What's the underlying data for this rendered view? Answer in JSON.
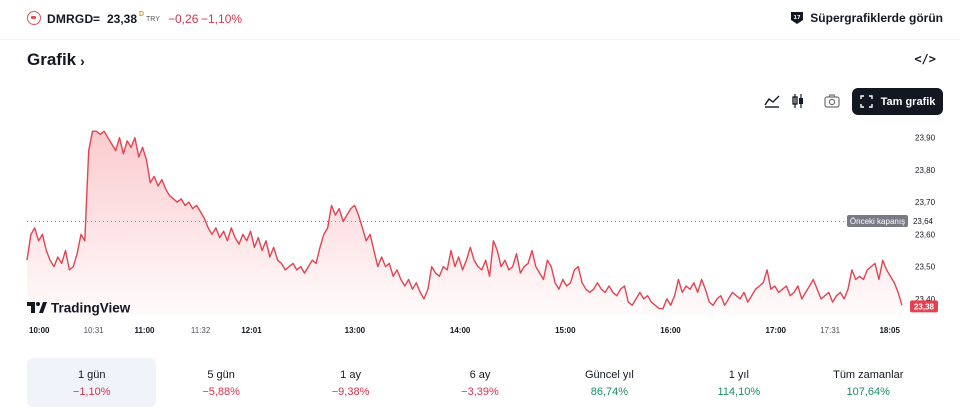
{
  "header": {
    "ticker": "DMRGD",
    "equals": "=",
    "price": "23,38",
    "price_marker": "D",
    "currency": "TRY",
    "change_abs": "−0,26",
    "change_pct": "−1,10%",
    "super_link": "Süpergrafiklerde görün"
  },
  "section": {
    "title": "Grafik"
  },
  "toolbar": {
    "fullscreen_label": "Tam grafik"
  },
  "watermark": "TradingView",
  "colors": {
    "line": "#e5424f",
    "negative": "#d8324b",
    "positive": "#1a8f6c",
    "dark": "#131722"
  },
  "chart_data": {
    "type": "area",
    "x_ticks": [
      {
        "label": "10:00",
        "t": 0
      },
      {
        "label": "10:31",
        "t": 31
      },
      {
        "label": "11:00",
        "t": 60
      },
      {
        "label": "11:32",
        "t": 92
      },
      {
        "label": "12:01",
        "t": 121
      },
      {
        "label": "13:00",
        "t": 180
      },
      {
        "label": "14:00",
        "t": 240
      },
      {
        "label": "15:00",
        "t": 300
      },
      {
        "label": "16:00",
        "t": 360
      },
      {
        "label": "17:00",
        "t": 420
      },
      {
        "label": "17:31",
        "t": 451
      },
      {
        "label": "18:05",
        "t": 485
      }
    ],
    "x_range": [
      -7,
      492
    ],
    "y_ticks": [
      "23,90",
      "23,80",
      "23,70",
      "23,60",
      "23,50",
      "23,40"
    ],
    "y_tick_values": [
      23.9,
      23.8,
      23.7,
      23.6,
      23.5,
      23.4
    ],
    "ylim": [
      23.35,
      23.93
    ],
    "previous_close": {
      "label": "Önceki kapanış",
      "value": 23.64,
      "value_label": "23,64"
    },
    "last_price_label": "23,38",
    "series": [
      {
        "values": [
          23.52,
          23.6,
          23.62,
          23.58,
          23.6,
          23.55,
          23.52,
          23.5,
          23.53,
          23.51,
          23.55,
          23.49,
          23.5,
          23.54,
          23.6,
          23.58,
          23.86,
          23.92,
          23.92,
          23.91,
          23.92,
          23.9,
          23.88,
          23.86,
          23.9,
          23.85,
          23.89,
          23.87,
          23.9,
          23.84,
          23.87,
          23.83,
          23.76,
          23.78,
          23.75,
          23.77,
          23.74,
          23.72,
          23.71,
          23.7,
          23.71,
          23.69,
          23.7,
          23.68,
          23.69,
          23.67,
          23.65,
          23.62,
          23.6,
          23.62,
          23.59,
          23.61,
          23.58,
          23.62,
          23.59,
          23.57,
          23.6,
          23.58,
          23.61,
          23.56,
          23.59,
          23.55,
          23.58,
          23.53,
          23.56,
          23.52,
          23.51,
          23.49,
          23.5,
          23.51,
          23.49,
          23.5,
          23.48,
          23.5,
          23.52,
          23.51,
          23.56,
          23.6,
          23.62,
          23.69,
          23.66,
          23.68,
          23.64,
          23.66,
          23.68,
          23.69,
          23.66,
          23.62,
          23.58,
          23.6,
          23.55,
          23.5,
          23.53,
          23.5,
          23.51,
          23.47,
          23.49,
          23.46,
          23.44,
          23.46,
          23.43,
          23.45,
          23.42,
          23.4,
          23.43,
          23.5,
          23.48,
          23.47,
          23.5,
          23.49,
          23.55,
          23.5,
          23.53,
          23.49,
          23.52,
          23.56,
          23.52,
          23.5,
          23.49,
          23.52,
          23.47,
          23.58,
          23.55,
          23.5,
          23.52,
          23.49,
          23.5,
          23.54,
          23.48,
          23.5,
          23.51,
          23.55,
          23.5,
          23.48,
          23.46,
          23.52,
          23.5,
          23.45,
          23.43,
          23.46,
          23.44,
          23.45,
          23.49,
          23.5,
          23.45,
          23.43,
          23.42,
          23.43,
          23.45,
          23.43,
          23.42,
          23.44,
          23.42,
          23.41,
          23.43,
          23.44,
          23.39,
          23.38,
          23.4,
          23.42,
          23.4,
          23.41,
          23.39,
          23.38,
          23.37,
          23.37,
          23.4,
          23.38,
          23.41,
          23.46,
          23.42,
          23.44,
          23.43,
          23.45,
          23.42,
          23.46,
          23.43,
          23.39,
          23.38,
          23.4,
          23.41,
          23.38,
          23.4,
          23.42,
          23.41,
          23.4,
          23.42,
          23.39,
          23.41,
          23.43,
          23.44,
          23.45,
          23.49,
          23.43,
          23.44,
          23.42,
          23.43,
          23.44,
          23.41,
          23.42,
          23.44,
          23.4,
          23.42,
          23.44,
          23.46,
          23.43,
          23.4,
          23.41,
          23.42,
          23.39,
          23.41,
          23.42,
          23.4,
          23.43,
          23.49,
          23.46,
          23.47,
          23.46,
          23.49,
          23.5,
          23.51,
          23.46,
          23.52,
          23.49,
          23.47,
          23.45,
          23.42,
          23.38
        ]
      }
    ]
  },
  "ranges": [
    {
      "label": "1 gün",
      "value": "−1,10%",
      "sign": "neg",
      "active": true
    },
    {
      "label": "5 gün",
      "value": "−5,88%",
      "sign": "neg",
      "active": false
    },
    {
      "label": "1 ay",
      "value": "−9,38%",
      "sign": "neg",
      "active": false
    },
    {
      "label": "6 ay",
      "value": "−3,39%",
      "sign": "neg",
      "active": false
    },
    {
      "label": "Güncel yıl",
      "value": "86,74%",
      "sign": "pos",
      "active": false
    },
    {
      "label": "1 yıl",
      "value": "114,10%",
      "sign": "pos",
      "active": false
    },
    {
      "label": "Tüm zamanlar",
      "value": "107,64%",
      "sign": "pos",
      "active": false
    }
  ]
}
